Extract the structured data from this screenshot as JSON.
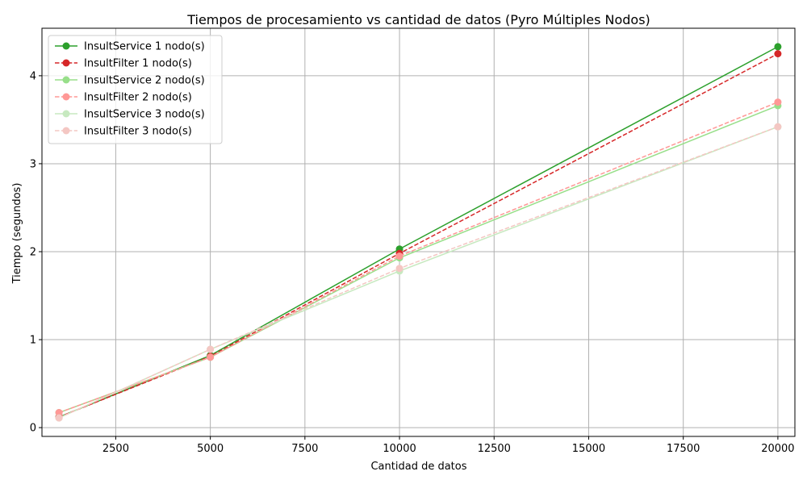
{
  "chart_data": {
    "type": "line",
    "title": "Tiempos de procesamiento vs cantidad de datos (Pyro Múltiples Nodos)",
    "xlabel": "Cantidad de datos",
    "ylabel": "Tiempo (segundos)",
    "xlim": [
      550,
      20450
    ],
    "ylim": [
      -0.1,
      4.54
    ],
    "xticks": [
      2500,
      5000,
      7500,
      10000,
      12500,
      15000,
      17500,
      20000
    ],
    "xtick_labels": [
      "2500",
      "5000",
      "7500",
      "10000",
      "12500",
      "15000",
      "17500",
      "20000"
    ],
    "yticks": [
      0,
      1,
      2,
      3,
      4
    ],
    "ytick_labels": [
      "0",
      "1",
      "2",
      "3",
      "4"
    ],
    "grid": true,
    "legend_position": "top-left",
    "x": [
      1000,
      5000,
      10000,
      20000
    ],
    "series": [
      {
        "name": "InsultService 1 nodo(s)",
        "color": "#2ca02c",
        "style": "solid",
        "values": [
          0.12,
          0.82,
          2.03,
          4.33
        ]
      },
      {
        "name": "InsultFilter 1 nodo(s)",
        "color": "#d62728",
        "style": "dashed",
        "values": [
          0.12,
          0.81,
          1.98,
          4.25
        ]
      },
      {
        "name": "InsultService 2 nodo(s)",
        "color": "#98df8a",
        "style": "solid",
        "values": [
          0.17,
          0.8,
          1.93,
          3.66
        ]
      },
      {
        "name": "InsultFilter 2 nodo(s)",
        "color": "#ff9896",
        "style": "dashed",
        "values": [
          0.17,
          0.8,
          1.95,
          3.7
        ]
      },
      {
        "name": "InsultService 3 nodo(s)",
        "color": "#c7e9c0",
        "style": "solid",
        "values": [
          0.11,
          0.89,
          1.78,
          3.42
        ]
      },
      {
        "name": "InsultFilter 3 nodo(s)",
        "color": "#f4c7c3",
        "style": "dashed",
        "values": [
          0.11,
          0.89,
          1.81,
          3.42
        ]
      }
    ]
  }
}
